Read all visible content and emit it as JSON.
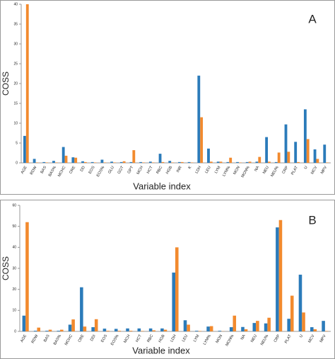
{
  "chart_data": [
    {
      "type": "bar",
      "title": "A",
      "y_label": "COSS",
      "x_label": "Variable index",
      "categories": [
        "AGE",
        "RDW",
        "BAS",
        "BAS%",
        "MCHC",
        "CRE",
        "DD",
        "EOS",
        "EOS%",
        "GLU",
        "GGT",
        "GPT",
        "MCH",
        "HCT",
        "RBC",
        "HGB",
        "INR",
        "K",
        "LDH",
        "LEU",
        "LYM",
        "LYM%",
        "MON",
        "MON%",
        "NA",
        "NEU",
        "NEU%",
        "CRP",
        "PLAT",
        "U",
        "MCV",
        "MPV"
      ],
      "series": [
        {
          "color": "#2b7bba",
          "values": [
            6.8,
            1,
            0.2,
            0.5,
            4,
            1.4,
            0.4,
            0.2,
            0.8,
            0.3,
            0.2,
            0.2,
            0.2,
            0.3,
            2.3,
            0.5,
            0.2,
            0.2,
            22,
            3.6,
            0.3,
            0.2,
            0.2,
            0.2,
            0.3,
            6.5,
            0.2,
            9.7,
            5.3,
            13.5,
            3.4,
            4.6
          ]
        },
        {
          "color": "#f28a2e",
          "values": [
            40,
            0.1,
            0.1,
            0.1,
            1.8,
            1.3,
            0.2,
            0.1,
            0.1,
            0.1,
            0.4,
            3.2,
            0.1,
            0.1,
            0.2,
            0.1,
            0.2,
            0.1,
            11.5,
            0.3,
            0.3,
            1.3,
            0.1,
            0.3,
            1.5,
            0.3,
            2.6,
            2.8,
            0.2,
            6,
            1,
            0.1
          ]
        }
      ],
      "ylim": [
        0,
        40
      ],
      "yticks": [
        0,
        5,
        10,
        15,
        20,
        25,
        30,
        35,
        40
      ]
    },
    {
      "type": "bar",
      "title": "B",
      "y_label": "COSS",
      "x_label": "Variable index",
      "categories": [
        "AGE",
        "RDW",
        "BAS",
        "BAS%",
        "MCHC",
        "CRE",
        "DDI",
        "EOS",
        "EOS%",
        "MCH",
        "HCT",
        "RBC",
        "HGB",
        "LDH",
        "LEU",
        "LYM",
        "LYM%",
        "MON",
        "MON%",
        "NA",
        "NEU",
        "NEU%",
        "CRP",
        "PLAT",
        "U",
        "MCV",
        "MPV"
      ],
      "series": [
        {
          "color": "#2b7bba",
          "values": [
            7.5,
            0.3,
            0.3,
            0.3,
            3.2,
            21,
            2,
            1.3,
            1.2,
            1.4,
            1.4,
            1.4,
            1.4,
            28,
            5.3,
            0.3,
            2.3,
            0.3,
            2,
            2.1,
            4,
            3.8,
            49.5,
            6,
            27,
            2,
            5
          ]
        },
        {
          "color": "#f28a2e",
          "values": [
            52,
            1.8,
            0.8,
            0.8,
            5.7,
            2.3,
            5.8,
            0.3,
            0.3,
            0.3,
            0.2,
            0.5,
            0.8,
            40,
            3.2,
            0.2,
            2.5,
            0.1,
            7.5,
            1,
            5,
            6.5,
            53,
            17,
            9,
            1,
            0.2
          ]
        }
      ],
      "ylim": [
        0,
        60
      ],
      "yticks": [
        0,
        10,
        20,
        30,
        40,
        50,
        60
      ]
    }
  ]
}
